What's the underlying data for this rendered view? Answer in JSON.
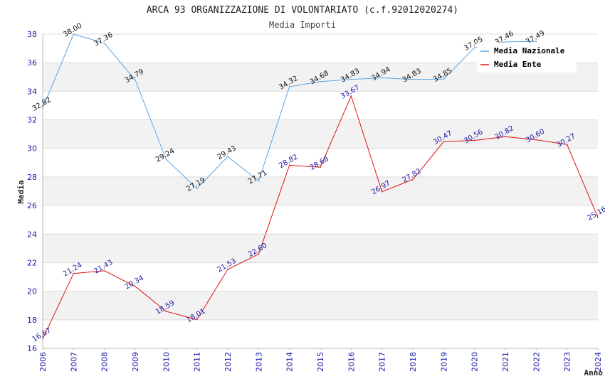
{
  "chart_data": {
    "type": "line",
    "title": "ARCA 93 ORGANIZZAZIONE DI VOLONTARIATO (c.f.92012020274)",
    "subtitle": "Media Importi",
    "xlabel": "Anno",
    "ylabel": "Media",
    "ylim": [
      16,
      38
    ],
    "yticks": [
      16,
      18,
      20,
      22,
      24,
      26,
      28,
      30,
      32,
      34,
      36,
      38
    ],
    "categories": [
      "2006",
      "2007",
      "2008",
      "2009",
      "2010",
      "2011",
      "2012",
      "2013",
      "2014",
      "2015",
      "2016",
      "2017",
      "2018",
      "2019",
      "2020",
      "2021",
      "2022",
      "2023",
      "2024"
    ],
    "legend_position": "top-right",
    "series": [
      {
        "name": "Media Nazionale",
        "color": "#5aa5e6",
        "label_color": "#111111",
        "values": [
          32.82,
          38.0,
          37.36,
          34.79,
          29.24,
          27.19,
          29.43,
          27.71,
          34.32,
          34.68,
          34.83,
          34.94,
          34.83,
          34.85,
          37.05,
          37.46,
          37.49,
          null,
          null
        ],
        "labels": [
          "32.82",
          "38.00",
          "37.36",
          "34.79",
          "29.24",
          "27.19",
          "29.43",
          "27.71",
          "34.32",
          "34.68",
          "34.83",
          "34.94",
          "34.83",
          "34.85",
          "37.05",
          "37.46",
          "37.49",
          "",
          ""
        ]
      },
      {
        "name": "Media Ente",
        "color": "#e01010",
        "label_color": "#1a1aa6",
        "values": [
          16.67,
          21.24,
          21.43,
          20.34,
          18.59,
          18.01,
          21.53,
          22.6,
          28.82,
          28.68,
          33.67,
          26.97,
          27.82,
          30.47,
          30.56,
          30.82,
          30.6,
          30.27,
          25.16
        ],
        "labels": [
          "16.67",
          "21.24",
          "21.43",
          "20.34",
          "18.59",
          "18.01",
          "21.53",
          "22.60",
          "28.82",
          "28.68",
          "33.67",
          "26.97",
          "27.82",
          "30.47",
          "30.56",
          "30.82",
          "30.60",
          "30.27",
          "25.16"
        ]
      }
    ]
  }
}
